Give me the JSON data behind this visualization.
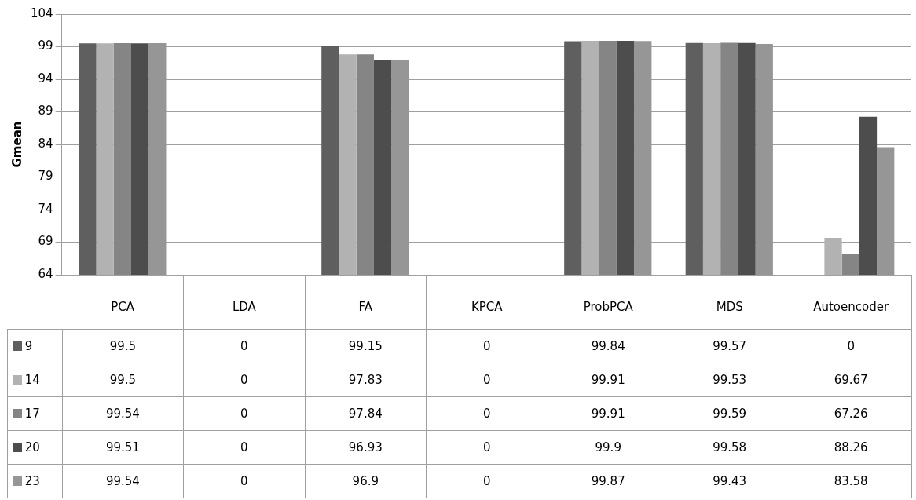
{
  "chart_data": {
    "type": "bar",
    "ylabel": "Gmean",
    "categories": [
      "PCA",
      "LDA",
      "FA",
      "KPCA",
      "ProbPCA",
      "MDS",
      "Autoencoder"
    ],
    "series": [
      {
        "name": "9",
        "color": "#5f5f5f",
        "values": [
          99.5,
          null,
          99.15,
          null,
          99.84,
          99.57,
          null
        ],
        "value_labels": [
          "99.5",
          "0",
          "99.15",
          "0",
          "99.84",
          "99.57",
          "0"
        ]
      },
      {
        "name": "14",
        "color": "#b2b2b2",
        "values": [
          99.5,
          null,
          97.83,
          null,
          99.91,
          99.53,
          69.67
        ],
        "value_labels": [
          "99.5",
          "0",
          "97.83",
          "0",
          "99.91",
          "99.53",
          "69.67"
        ]
      },
      {
        "name": "17",
        "color": "#858585",
        "values": [
          99.54,
          null,
          97.84,
          null,
          99.91,
          99.59,
          67.26
        ],
        "value_labels": [
          "99.54",
          "0",
          "97.84",
          "0",
          "99.91",
          "99.59",
          "67.26"
        ]
      },
      {
        "name": "20",
        "color": "#4d4d4d",
        "values": [
          99.51,
          null,
          96.93,
          null,
          99.9,
          99.58,
          88.26
        ],
        "value_labels": [
          "99.51",
          "0",
          "96.93",
          "0",
          "99.9",
          "99.58",
          "88.26"
        ]
      },
      {
        "name": "23",
        "color": "#969696",
        "values": [
          99.54,
          null,
          96.9,
          null,
          99.87,
          99.43,
          83.58
        ],
        "value_labels": [
          "99.54",
          "0",
          "96.9",
          "0",
          "99.87",
          "99.43",
          "83.58"
        ]
      }
    ],
    "ylim": [
      64,
      104
    ],
    "yticks": [
      64,
      69,
      74,
      79,
      84,
      89,
      94,
      99,
      104
    ],
    "grid": "y",
    "legend": "bottom left"
  }
}
